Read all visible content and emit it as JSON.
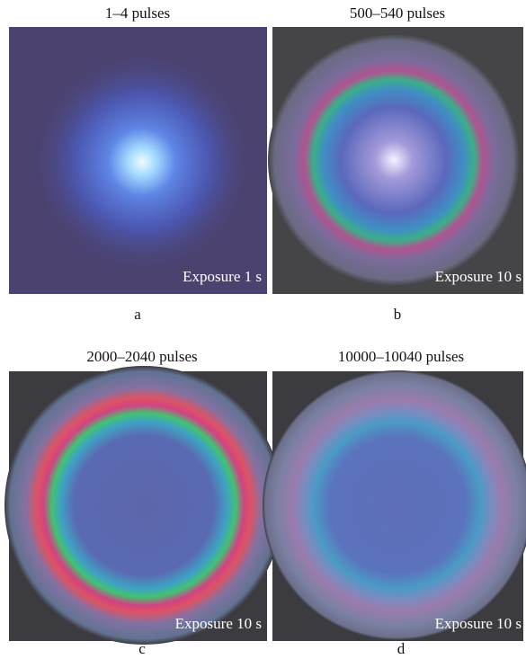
{
  "panels": [
    {
      "title": "1–4 pulses",
      "exposure": "Exposure 1 s",
      "label": "a"
    },
    {
      "title": "500–540 pulses",
      "exposure": "Exposure 10 s",
      "label": "b"
    },
    {
      "title": "2000–2040 pulses",
      "exposure": "Exposure 10 s",
      "label": "c"
    },
    {
      "title": "10000–10040 pulses",
      "exposure": "Exposure 10 s",
      "label": "d"
    }
  ]
}
